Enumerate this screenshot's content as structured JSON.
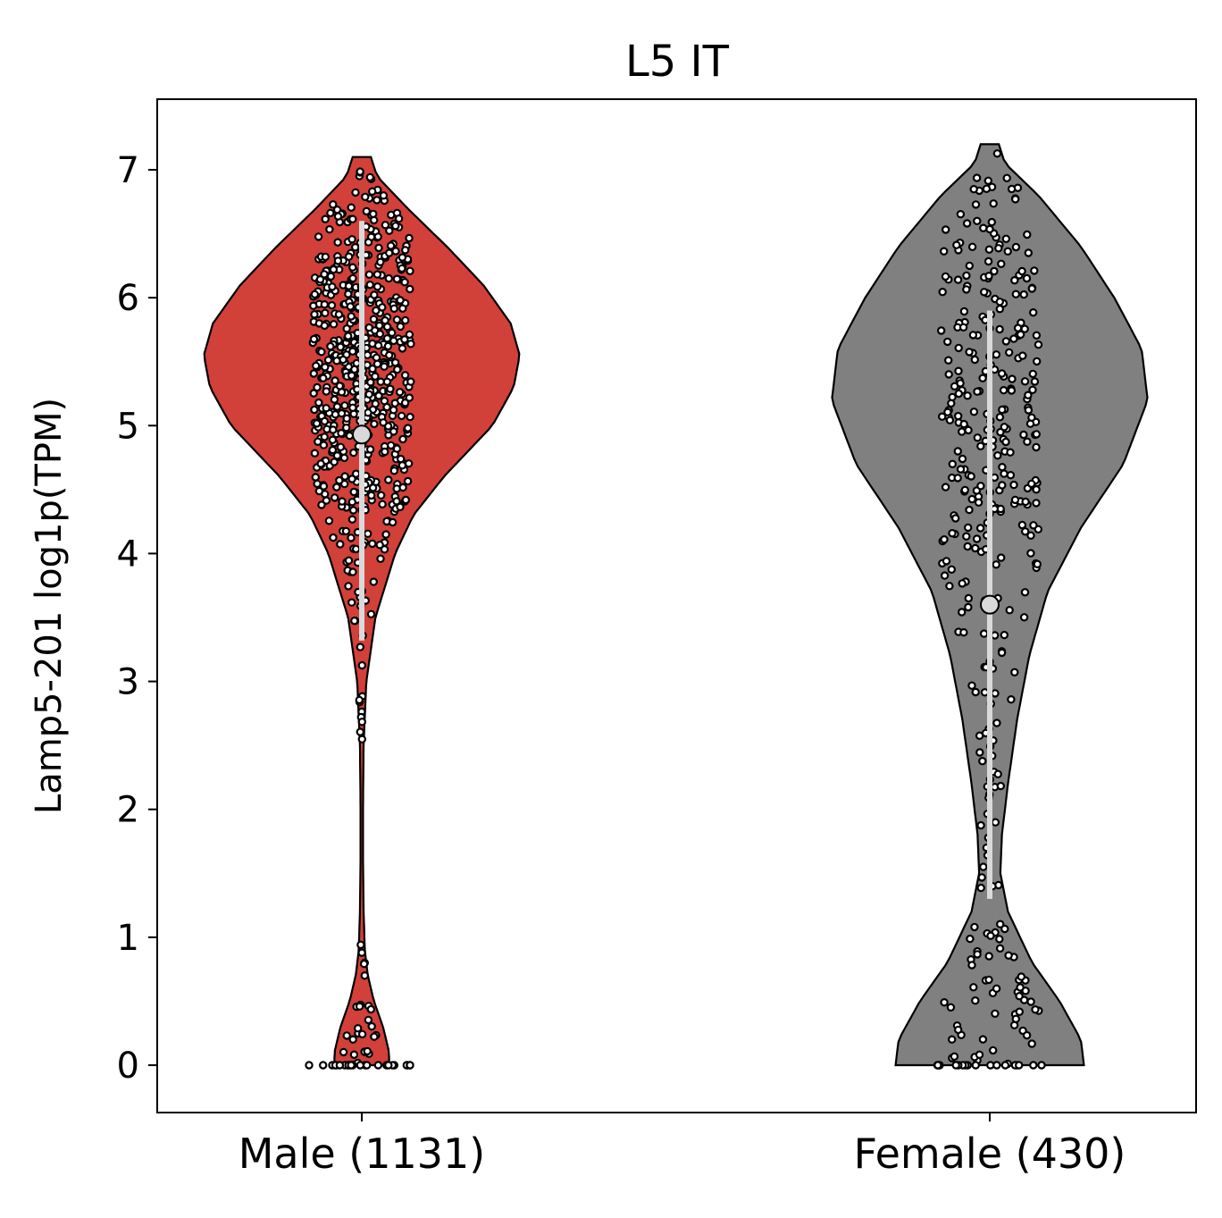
{
  "chart_data": {
    "type": "violin",
    "title": "L5 IT",
    "xlabel": "",
    "ylabel": "Lamp5-201 log1p(TPM)",
    "ylim": [
      -0.36,
      7.55
    ],
    "yticks": [
      0,
      1,
      2,
      3,
      4,
      5,
      6,
      7
    ],
    "categories": [
      "Male (1131)",
      "Female (430)"
    ],
    "series": [
      {
        "category": "Male (1131)",
        "color": "#d2403a",
        "median": 4.93,
        "q1": 3.32,
        "q3": 6.6,
        "max": 7.1,
        "min": 0,
        "density_profile": [
          [
            0,
            0.09
          ],
          [
            0.1,
            0.09
          ],
          [
            0.3,
            0.07
          ],
          [
            0.5,
            0.04
          ],
          [
            0.7,
            0.02
          ],
          [
            0.9,
            0.01
          ],
          [
            1.2,
            0.006
          ],
          [
            1.6,
            0.004
          ],
          [
            2,
            0.004
          ],
          [
            2.5,
            0.006
          ],
          [
            3,
            0.015
          ],
          [
            3.5,
            0.045
          ],
          [
            4,
            0.11
          ],
          [
            4.3,
            0.17
          ],
          [
            4.6,
            0.27
          ],
          [
            5,
            0.43
          ],
          [
            5.3,
            0.5
          ],
          [
            5.55,
            0.52
          ],
          [
            5.8,
            0.49
          ],
          [
            6.1,
            0.4
          ],
          [
            6.4,
            0.28
          ],
          [
            6.7,
            0.15
          ],
          [
            6.95,
            0.05
          ],
          [
            7.1,
            0.03
          ]
        ]
      },
      {
        "category": "Female (430)",
        "color": "#808080",
        "median": 3.6,
        "q1": 1.3,
        "q3": 5.9,
        "max": 7.2,
        "min": 0,
        "density_profile": [
          [
            0,
            0.31
          ],
          [
            0.2,
            0.3
          ],
          [
            0.5,
            0.23
          ],
          [
            0.8,
            0.14
          ],
          [
            1.2,
            0.06
          ],
          [
            1.5,
            0.035
          ],
          [
            1.8,
            0.04
          ],
          [
            2.2,
            0.06
          ],
          [
            2.7,
            0.09
          ],
          [
            3.2,
            0.13
          ],
          [
            3.7,
            0.19
          ],
          [
            4.2,
            0.3
          ],
          [
            4.7,
            0.44
          ],
          [
            5.2,
            0.52
          ],
          [
            5.6,
            0.5
          ],
          [
            6.0,
            0.41
          ],
          [
            6.4,
            0.3
          ],
          [
            6.8,
            0.16
          ],
          [
            7.05,
            0.05
          ],
          [
            7.2,
            0.03
          ]
        ]
      }
    ]
  }
}
